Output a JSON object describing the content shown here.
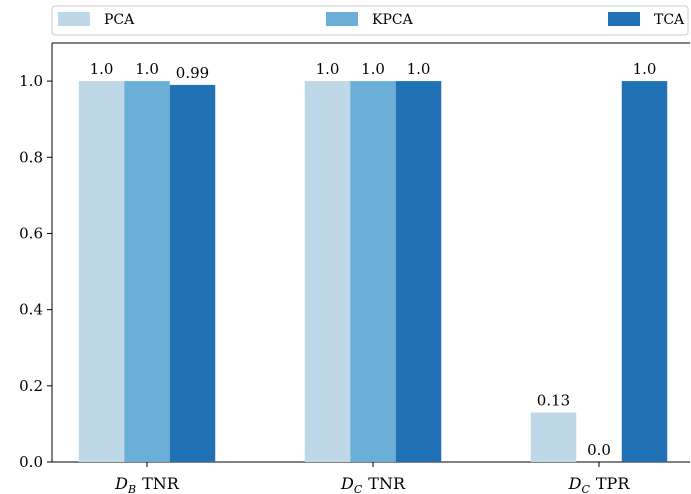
{
  "chart_data": {
    "type": "bar",
    "categories": [
      {
        "script": "D",
        "sub": "B",
        "suffix": "TNR"
      },
      {
        "script": "D",
        "sub": "C",
        "suffix": "TNR"
      },
      {
        "script": "D",
        "sub": "C",
        "suffix": "TPR"
      }
    ],
    "series": [
      {
        "name": "PCA",
        "color": "#bfd8e8",
        "values": [
          1.0,
          1.0,
          0.13
        ],
        "labels": [
          "1.0",
          "1.0",
          "0.13"
        ]
      },
      {
        "name": "KPCA",
        "color": "#6baed6",
        "values": [
          1.0,
          1.0,
          0.0
        ],
        "labels": [
          "1.0",
          "1.0",
          "0.0"
        ]
      },
      {
        "name": "TCA",
        "color": "#2171b5",
        "values": [
          0.99,
          1.0,
          1.0
        ],
        "labels": [
          "0.99",
          "1.0",
          "1.0"
        ]
      }
    ],
    "yticks": [
      "0.0",
      "0.2",
      "0.4",
      "0.6",
      "0.8",
      "1.0"
    ],
    "ylim": [
      0,
      1.1
    ],
    "legend_position": "top",
    "grid": false
  }
}
